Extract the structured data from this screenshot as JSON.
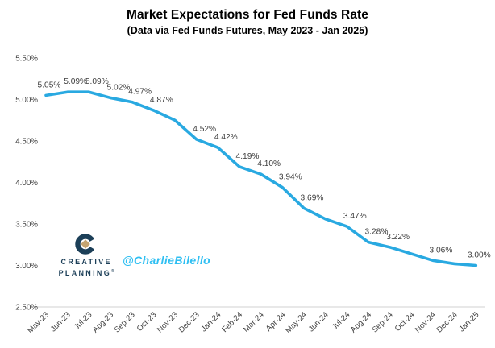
{
  "header": {
    "title": "Market Expectations for Fed Funds Rate",
    "subtitle": "(Data via Fed Funds Futures, May 2023 - Jan 2025)"
  },
  "branding": {
    "logo_line1": "CREATIVE",
    "logo_line2": "PLANNING",
    "logo_reg_mark": "®",
    "logo_navy": "#1C3F58",
    "logo_gold": "#C5A572",
    "handle": "@CharlieBilello",
    "handle_color": "#2FBFF2"
  },
  "chart_data": {
    "type": "line",
    "title": "Market Expectations for Fed Funds Rate",
    "subtitle": "(Data via Fed Funds Futures, May 2023 - Jan 2025)",
    "categories": [
      "May-23",
      "Jun-23",
      "Jul-23",
      "Aug-23",
      "Sep-23",
      "Oct-23",
      "Nov-23",
      "Dec-23",
      "Jan-24",
      "Feb-24",
      "Mar-24",
      "Apr-24",
      "May-24",
      "Jun-24",
      "Jul-24",
      "Aug-24",
      "Sep-24",
      "Oct-24",
      "Nov-24",
      "Dec-24",
      "Jan-25"
    ],
    "values": [
      5.05,
      5.09,
      5.09,
      5.02,
      4.97,
      4.87,
      4.75,
      4.52,
      4.42,
      4.19,
      4.1,
      3.94,
      3.69,
      3.56,
      3.47,
      3.28,
      3.22,
      3.14,
      3.06,
      3.02,
      3.0
    ],
    "point_labels": [
      "5.05%",
      "5.09%",
      "5.09%",
      "5.02%",
      "4.97%",
      "4.87%",
      null,
      "4.52%",
      "4.42%",
      "4.19%",
      "4.10%",
      "3.94%",
      "3.69%",
      null,
      "3.47%",
      "3.28%",
      "3.22%",
      null,
      "3.06%",
      null,
      "3.00%"
    ],
    "y_ticks": [
      "5.50%",
      "5.00%",
      "4.50%",
      "4.00%",
      "3.50%",
      "3.00%",
      "2.50%"
    ],
    "ylim": [
      2.5,
      5.5
    ],
    "xlabel": "",
    "ylabel": "",
    "grid": false,
    "legend": "none",
    "line_color": "#29A9E1",
    "axis_line_color": "#D9D9D9",
    "tick_color": "#3D3D3D",
    "label_color": "#3D3D3D"
  }
}
